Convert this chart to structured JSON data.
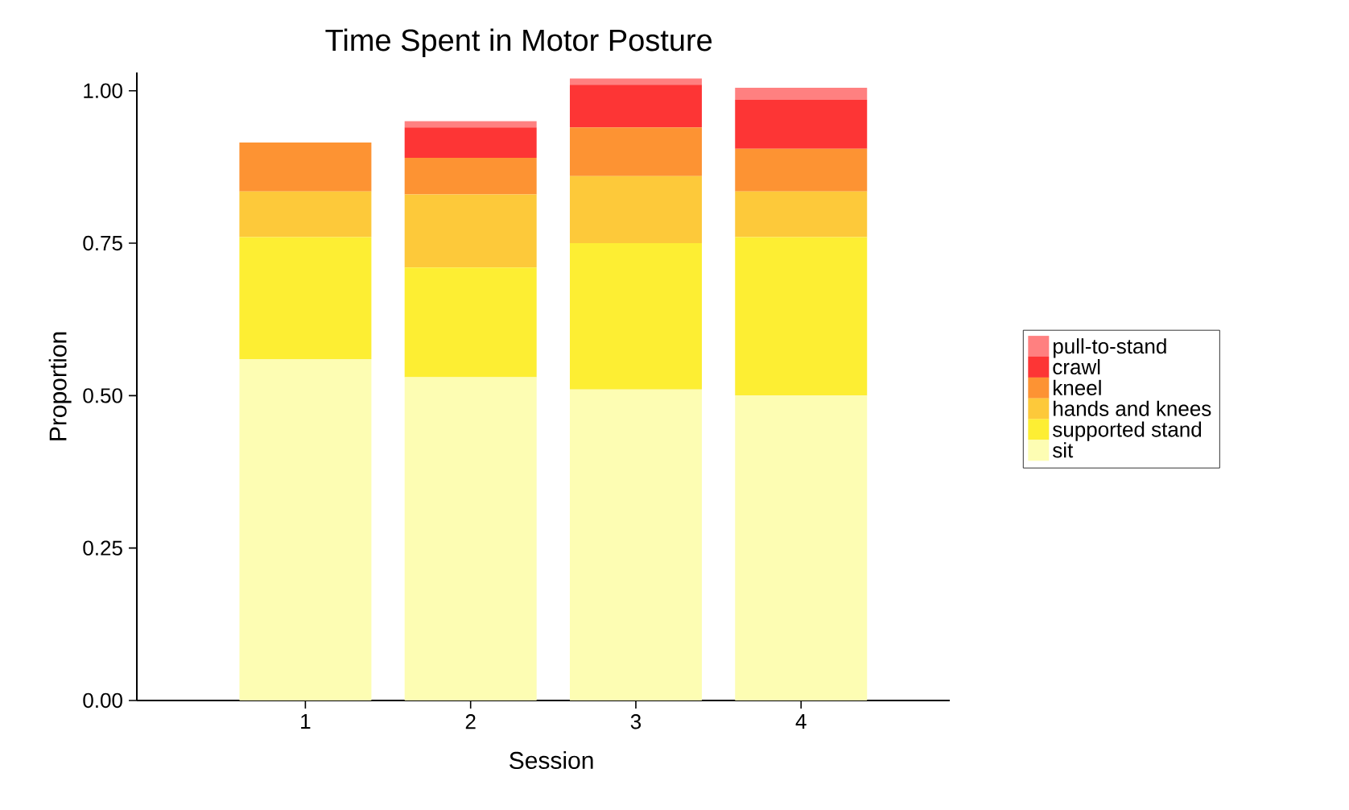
{
  "chart_data": {
    "type": "bar",
    "title": "Time Spent in Motor Posture",
    "xlabel": "Session",
    "ylabel": "Proportion",
    "categories": [
      "1",
      "2",
      "3",
      "4"
    ],
    "stacked": true,
    "legend": "right",
    "grid": false,
    "ylim": [
      0,
      1.03
    ],
    "yticks": [
      {
        "value": 0,
        "label": "0.00"
      },
      {
        "value": 0.25,
        "label": "0.25"
      },
      {
        "value": 0.5,
        "label": "0.50"
      },
      {
        "value": 0.75,
        "label": "0.75"
      },
      {
        "value": 1,
        "label": "1.00"
      }
    ],
    "series": [
      {
        "name": "sit",
        "color": "#fdfdb3",
        "values": [
          0.56,
          0.53,
          0.51,
          0.5
        ]
      },
      {
        "name": "supported stand",
        "color": "#fdee33",
        "values": [
          0.2,
          0.18,
          0.24,
          0.26
        ]
      },
      {
        "name": "hands and knees",
        "color": "#fdc93a",
        "values": [
          0.075,
          0.12,
          0.11,
          0.075
        ]
      },
      {
        "name": "kneel",
        "color": "#fd9333",
        "values": [
          0.08,
          0.06,
          0.08,
          0.07
        ]
      },
      {
        "name": "crawl",
        "color": "#fd3535",
        "values": [
          0,
          0.05,
          0.07,
          0.08
        ]
      },
      {
        "name": "pull-to-stand",
        "color": "#ff8080",
        "values": [
          0,
          0.01,
          0.01,
          0.02
        ]
      }
    ]
  }
}
